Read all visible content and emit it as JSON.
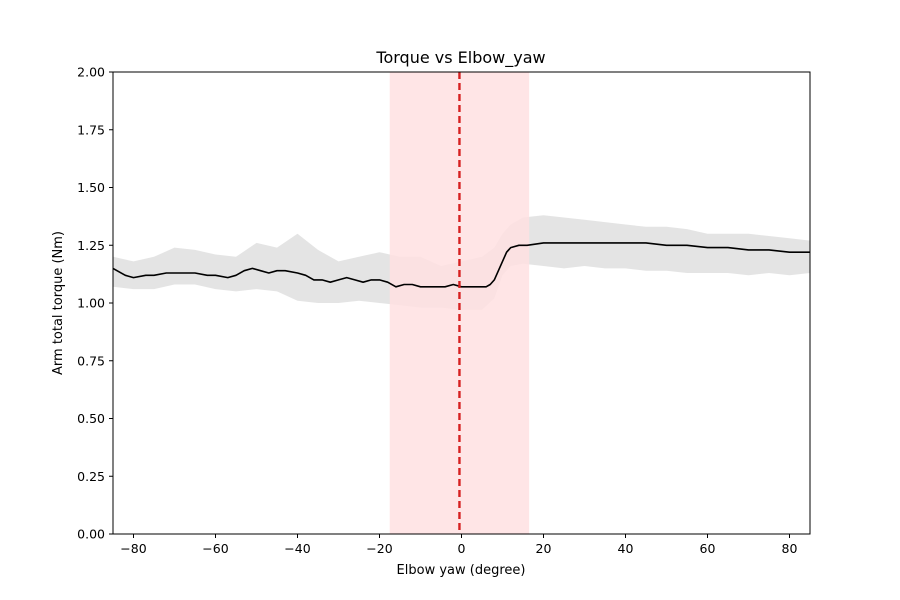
{
  "chart_data": {
    "type": "line",
    "title": "Torque vs Elbow_yaw",
    "xlabel": "Elbow yaw (degree)",
    "ylabel": "Arm total torque (Nm)",
    "xlim": [
      -85,
      85
    ],
    "ylim": [
      0,
      2
    ],
    "x_ticks": [
      -80,
      -60,
      -40,
      -20,
      0,
      20,
      40,
      60,
      80
    ],
    "x_tick_labels": [
      "−80",
      "−60",
      "−40",
      "−20",
      "0",
      "20",
      "40",
      "60",
      "80"
    ],
    "y_ticks": [
      0,
      0.25,
      0.5,
      0.75,
      1.0,
      1.25,
      1.5,
      1.75,
      2.0
    ],
    "y_tick_labels": [
      "0.00",
      "0.25",
      "0.50",
      "0.75",
      "1.00",
      "1.25",
      "1.50",
      "1.75",
      "2.00"
    ],
    "grid": false,
    "shaded_region": {
      "x_start": -17.5,
      "x_end": 16.5,
      "color": "#ffe0e2"
    },
    "vline": {
      "x": -0.5,
      "color": "#d62020",
      "style": "dashed"
    },
    "raw_band": {
      "color": "#d9d9d9",
      "x": [
        -85,
        -80,
        -75,
        -70,
        -65,
        -60,
        -55,
        -50,
        -45,
        -40,
        -35,
        -30,
        -25,
        -20,
        -15,
        -10,
        -5,
        0,
        5,
        8,
        10,
        12,
        15,
        20,
        25,
        30,
        35,
        40,
        45,
        50,
        55,
        60,
        65,
        70,
        75,
        80,
        85
      ],
      "lower": [
        1.07,
        1.06,
        1.06,
        1.08,
        1.08,
        1.06,
        1.05,
        1.06,
        1.05,
        1.01,
        1.0,
        1.0,
        1.01,
        1.0,
        0.99,
        0.98,
        0.98,
        0.97,
        0.97,
        1.02,
        1.12,
        1.16,
        1.17,
        1.16,
        1.15,
        1.16,
        1.15,
        1.15,
        1.14,
        1.14,
        1.13,
        1.13,
        1.13,
        1.12,
        1.13,
        1.12,
        1.13
      ],
      "upper": [
        1.2,
        1.18,
        1.2,
        1.24,
        1.23,
        1.21,
        1.2,
        1.26,
        1.24,
        1.3,
        1.23,
        1.18,
        1.2,
        1.22,
        1.2,
        1.2,
        1.16,
        1.18,
        1.2,
        1.24,
        1.3,
        1.34,
        1.37,
        1.38,
        1.37,
        1.36,
        1.35,
        1.34,
        1.33,
        1.33,
        1.32,
        1.3,
        1.3,
        1.3,
        1.29,
        1.28,
        1.27
      ]
    },
    "series": [
      {
        "color": "#000000",
        "x": [
          -85,
          -82,
          -80,
          -77,
          -75,
          -72,
          -70,
          -67,
          -65,
          -62,
          -60,
          -57,
          -55,
          -53,
          -51,
          -49,
          -47,
          -45,
          -43,
          -40,
          -38,
          -36,
          -34,
          -32,
          -30,
          -28,
          -26,
          -24,
          -22,
          -20,
          -18,
          -16,
          -14,
          -12,
          -10,
          -8,
          -6,
          -4,
          -2,
          0,
          2,
          4,
          6,
          7,
          8,
          9,
          10,
          11,
          12,
          14,
          16,
          20,
          25,
          30,
          35,
          40,
          45,
          50,
          55,
          60,
          65,
          70,
          75,
          80,
          85
        ],
        "y": [
          1.15,
          1.12,
          1.11,
          1.12,
          1.12,
          1.13,
          1.13,
          1.13,
          1.13,
          1.12,
          1.12,
          1.11,
          1.12,
          1.14,
          1.15,
          1.14,
          1.13,
          1.14,
          1.14,
          1.13,
          1.12,
          1.1,
          1.1,
          1.09,
          1.1,
          1.11,
          1.1,
          1.09,
          1.1,
          1.1,
          1.09,
          1.07,
          1.08,
          1.08,
          1.07,
          1.07,
          1.07,
          1.07,
          1.08,
          1.07,
          1.07,
          1.07,
          1.07,
          1.08,
          1.1,
          1.14,
          1.18,
          1.22,
          1.24,
          1.25,
          1.25,
          1.26,
          1.26,
          1.26,
          1.26,
          1.26,
          1.26,
          1.25,
          1.25,
          1.24,
          1.24,
          1.23,
          1.23,
          1.22,
          1.22
        ]
      }
    ]
  }
}
